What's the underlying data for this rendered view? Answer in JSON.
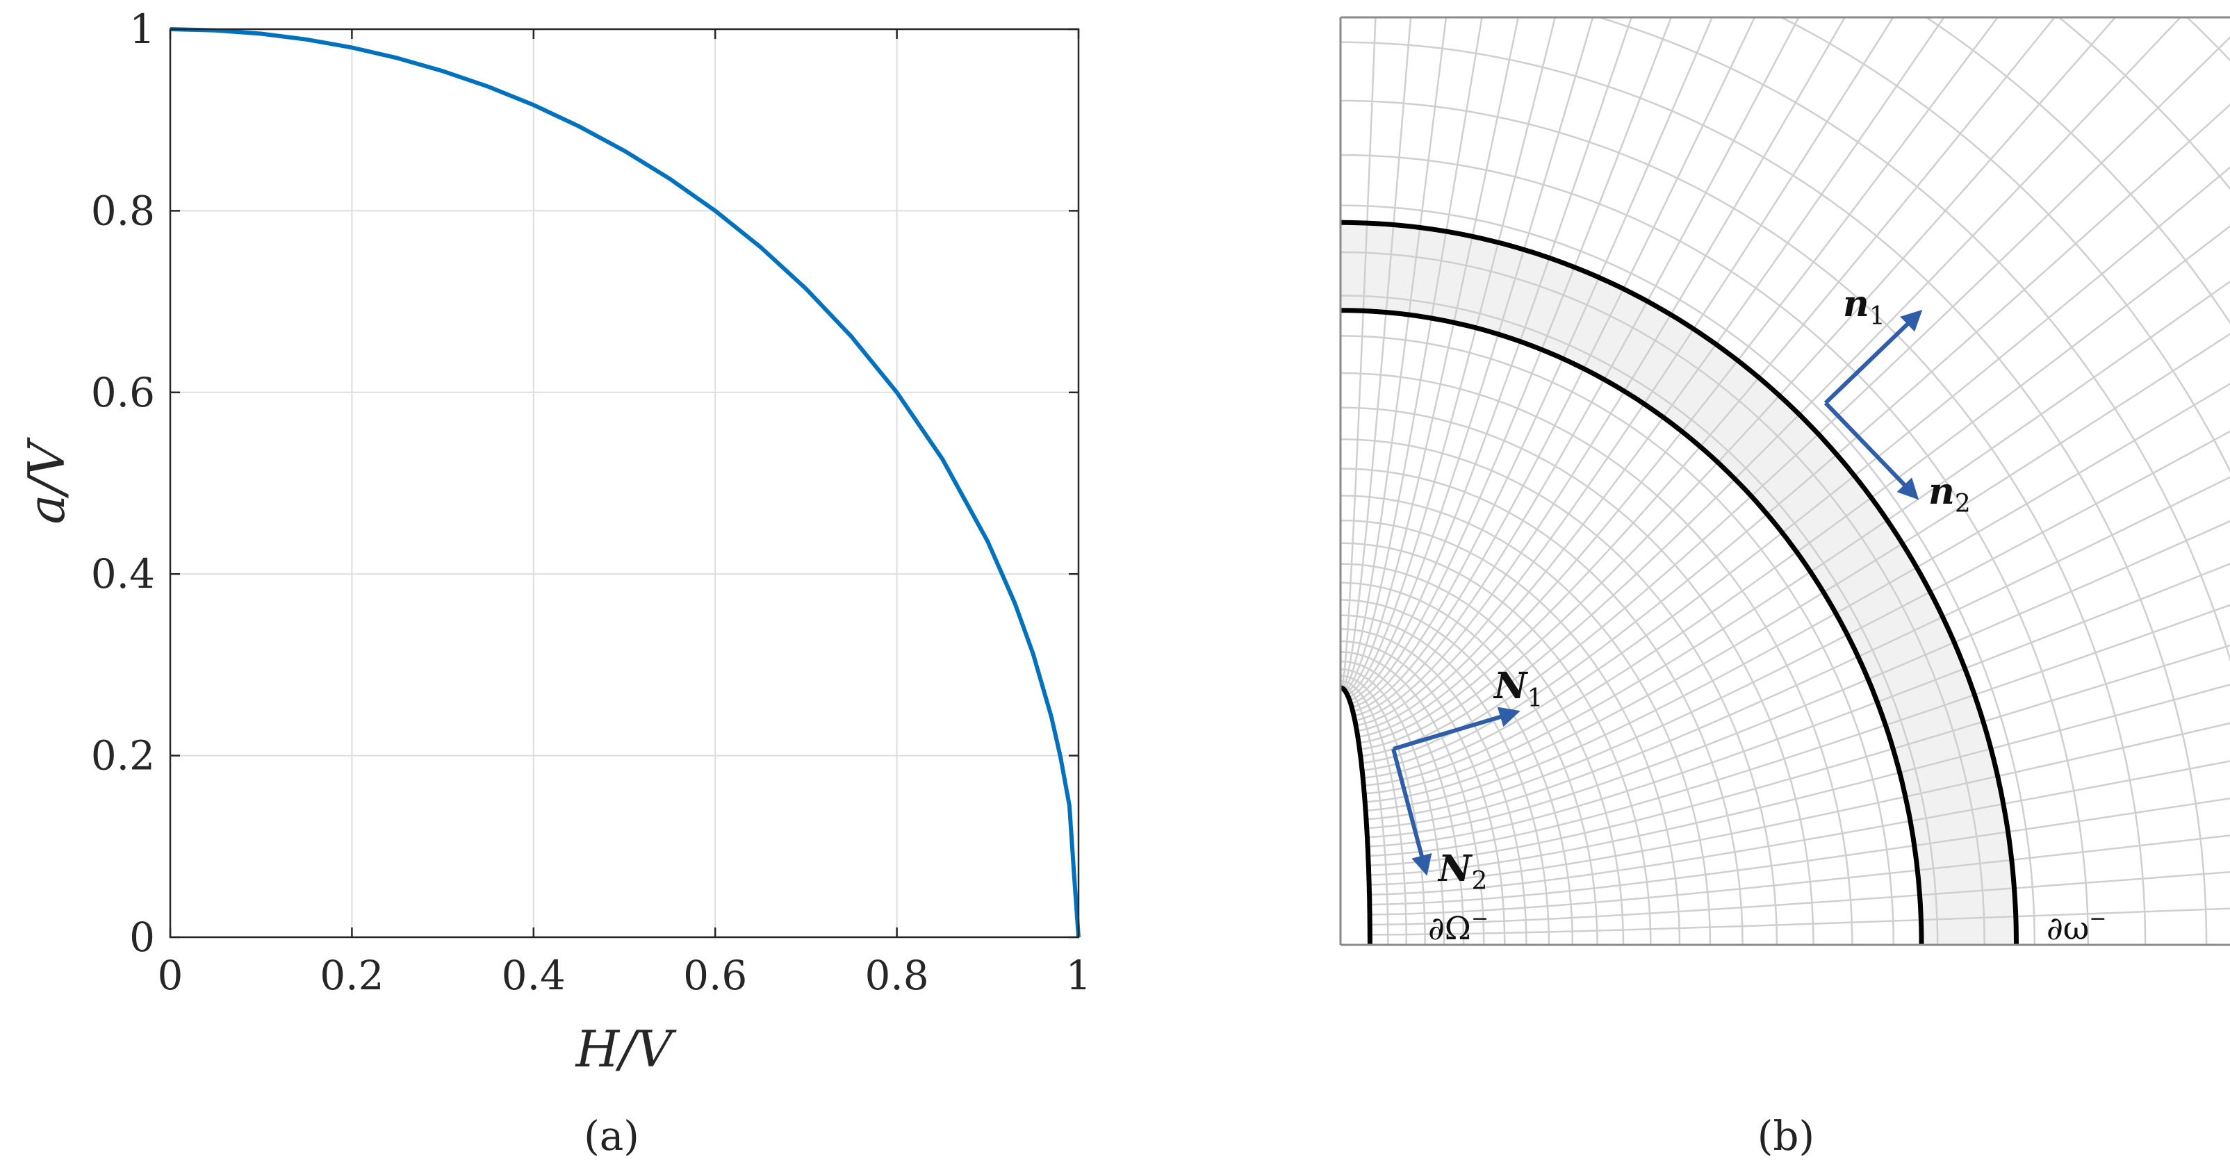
{
  "chart_data": {
    "type": "line",
    "xlabel": "H/V",
    "ylabel": "a/V",
    "xlim": [
      0,
      1
    ],
    "ylim": [
      0,
      1
    ],
    "xticks": [
      "0",
      "0.2",
      "0.4",
      "0.6",
      "0.8",
      "1"
    ],
    "yticks": [
      "0",
      "0.2",
      "0.4",
      "0.6",
      "0.8",
      "1"
    ],
    "grid": true,
    "line_color": "#0072BD",
    "series": [
      {
        "x": [
          0,
          0.05,
          0.1,
          0.15,
          0.2,
          0.25,
          0.3,
          0.35,
          0.4,
          0.45,
          0.5,
          0.55,
          0.6,
          0.65,
          0.7,
          0.75,
          0.8,
          0.85,
          0.9,
          0.93,
          0.95,
          0.97,
          0.98,
          0.99,
          0.995,
          1.0
        ],
        "y": [
          1,
          0.9987,
          0.995,
          0.9887,
          0.9798,
          0.9682,
          0.9539,
          0.9367,
          0.9165,
          0.893,
          0.866,
          0.8352,
          0.8,
          0.7599,
          0.7141,
          0.6614,
          0.6,
          0.5268,
          0.4359,
          0.3676,
          0.3122,
          0.2431,
          0.199,
          0.145,
          0.07,
          0.0
        ]
      }
    ]
  },
  "captions": {
    "a": "(a)",
    "b": "(b)"
  },
  "diagram": {
    "vectors": {
      "n": "n",
      "n1_sub": "1",
      "n2_sub": "2",
      "N": "N",
      "N1_sub": "1",
      "N2_sub": "2"
    },
    "boundaries": {
      "inner": "∂Ω",
      "outer": "∂ω",
      "sup": "−"
    },
    "colors": {
      "vector": "#2F5DA8",
      "band_fill": "#F1F1F1",
      "grid_line": "#CFCFCF",
      "boundary": "#000000"
    }
  }
}
